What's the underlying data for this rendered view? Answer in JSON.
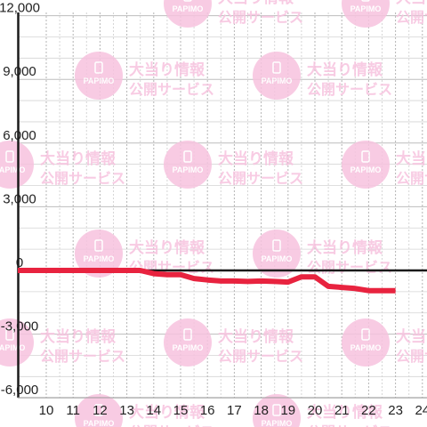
{
  "chart_data": {
    "type": "line",
    "x": [
      10,
      11,
      12,
      13,
      13.5,
      14,
      14.5,
      15,
      15.5,
      16,
      16.5,
      17,
      17.5,
      18,
      18.5,
      19,
      19.5,
      20,
      20.5,
      21,
      21.5,
      22,
      22.5,
      23
    ],
    "series": [
      {
        "values": [
          0,
          0,
          0,
          0,
          0,
          -150,
          -200,
          -200,
          -380,
          -450,
          -500,
          -500,
          -520,
          -500,
          -520,
          -550,
          -300,
          -300,
          -750,
          -800,
          -850,
          -950,
          -950,
          -950
        ],
        "color": "#e8233f"
      }
    ],
    "xticks": [
      "10",
      "11",
      "12",
      "13",
      "14",
      "15",
      "16",
      "17",
      "18",
      "19",
      "20",
      "21",
      "22",
      "23",
      "24"
    ],
    "yticks": [
      "-6,000",
      "-3,000",
      "0",
      "3,000",
      "6,000",
      "9,000",
      "12,000"
    ],
    "xlim": [
      9.5,
      24.5
    ],
    "ylim": [
      -6000,
      12000
    ],
    "grid": true,
    "title": "",
    "xlabel": "",
    "ylabel": ""
  },
  "watermark": {
    "logo_text": "PAPIMO",
    "line1": "大当り情報",
    "line2": "公開サービス",
    "color": "#f7c3df"
  }
}
